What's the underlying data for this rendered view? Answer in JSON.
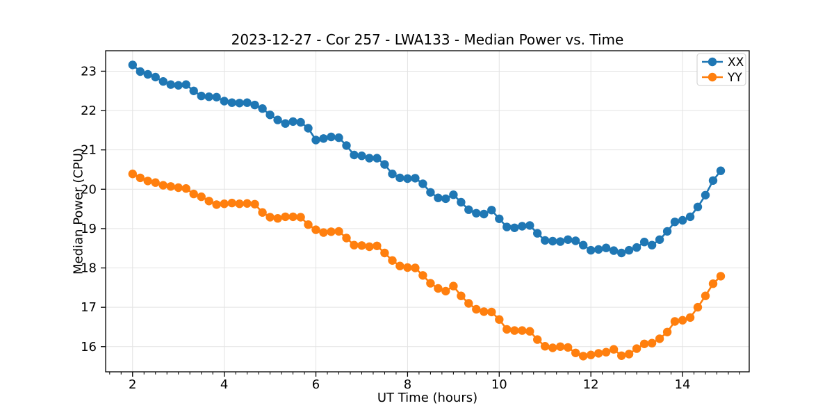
{
  "chart": {
    "title": "2023-12-27 - Cor 257 - LWA133 - Median Power vs. Time",
    "xlabel": "UT Time (hours)",
    "ylabel": "Median Power (CPU)"
  },
  "chart_data": {
    "type": "line",
    "title": "2023-12-27 - Cor 257 - LWA133 - Median Power vs. Time",
    "xlabel": "UT Time (hours)",
    "ylabel": "Median Power (CPU)",
    "grid": true,
    "legend_position": "upper right",
    "xlim": [
      1.412,
      15.455
    ],
    "ylim": [
      15.36,
      23.52
    ],
    "xticks": [
      2,
      4,
      6,
      8,
      10,
      12,
      14
    ],
    "yticks": [
      16,
      17,
      18,
      19,
      20,
      21,
      22,
      23
    ],
    "xminor_step": 0.25,
    "grid_color": "#e3e3e3",
    "x": [
      2.0,
      2.167,
      2.333,
      2.5,
      2.667,
      2.833,
      3.0,
      3.167,
      3.333,
      3.5,
      3.667,
      3.833,
      4.0,
      4.167,
      4.333,
      4.5,
      4.667,
      4.833,
      5.0,
      5.167,
      5.333,
      5.5,
      5.667,
      5.833,
      6.0,
      6.167,
      6.333,
      6.5,
      6.667,
      6.833,
      7.0,
      7.167,
      7.333,
      7.5,
      7.667,
      7.833,
      8.0,
      8.167,
      8.333,
      8.5,
      8.667,
      8.833,
      9.0,
      9.167,
      9.333,
      9.5,
      9.667,
      9.833,
      10.0,
      10.167,
      10.333,
      10.5,
      10.667,
      10.833,
      11.0,
      11.167,
      11.333,
      11.5,
      11.667,
      11.833,
      12.0,
      12.167,
      12.333,
      12.5,
      12.667,
      12.833,
      13.0,
      13.167,
      13.333,
      13.5,
      13.667,
      13.833,
      14.0,
      14.167,
      14.333,
      14.5,
      14.667,
      14.833
    ],
    "series": [
      {
        "name": "XX",
        "color": "#1f77b4",
        "values": [
          23.16,
          22.99,
          22.92,
          22.85,
          22.74,
          22.66,
          22.64,
          22.66,
          22.5,
          22.37,
          22.35,
          22.34,
          22.24,
          22.2,
          22.19,
          22.2,
          22.14,
          22.05,
          21.89,
          21.76,
          21.67,
          21.72,
          21.7,
          21.55,
          21.25,
          21.29,
          21.33,
          21.31,
          21.11,
          20.87,
          20.85,
          20.79,
          20.79,
          20.63,
          20.39,
          20.29,
          20.27,
          20.28,
          20.14,
          19.92,
          19.78,
          19.76,
          19.86,
          19.67,
          19.48,
          19.39,
          19.37,
          19.47,
          19.25,
          19.04,
          19.02,
          19.06,
          19.08,
          18.88,
          18.7,
          18.68,
          18.67,
          18.72,
          18.69,
          18.58,
          18.45,
          18.47,
          18.51,
          18.44,
          18.38,
          18.45,
          18.52,
          18.66,
          18.58,
          18.72,
          18.93,
          19.17,
          19.21,
          19.3,
          19.55,
          19.85,
          20.22,
          20.47
        ]
      },
      {
        "name": "YY",
        "color": "#ff7f0e",
        "values": [
          20.39,
          20.29,
          20.21,
          20.17,
          20.1,
          20.07,
          20.04,
          20.02,
          19.88,
          19.81,
          19.7,
          19.61,
          19.63,
          19.65,
          19.63,
          19.64,
          19.62,
          19.41,
          19.29,
          19.26,
          19.3,
          19.3,
          19.29,
          19.1,
          18.97,
          18.9,
          18.92,
          18.93,
          18.76,
          18.58,
          18.57,
          18.54,
          18.56,
          18.38,
          18.19,
          18.05,
          18.01,
          18.0,
          17.81,
          17.61,
          17.48,
          17.41,
          17.54,
          17.29,
          17.1,
          16.95,
          16.89,
          16.88,
          16.69,
          16.44,
          16.41,
          16.41,
          16.39,
          16.18,
          16.01,
          15.97,
          16.0,
          15.98,
          15.84,
          15.76,
          15.79,
          15.83,
          15.86,
          15.93,
          15.77,
          15.81,
          15.95,
          16.07,
          16.09,
          16.2,
          16.37,
          16.64,
          16.67,
          16.74,
          17.0,
          17.29,
          17.6,
          17.79
        ]
      }
    ]
  }
}
